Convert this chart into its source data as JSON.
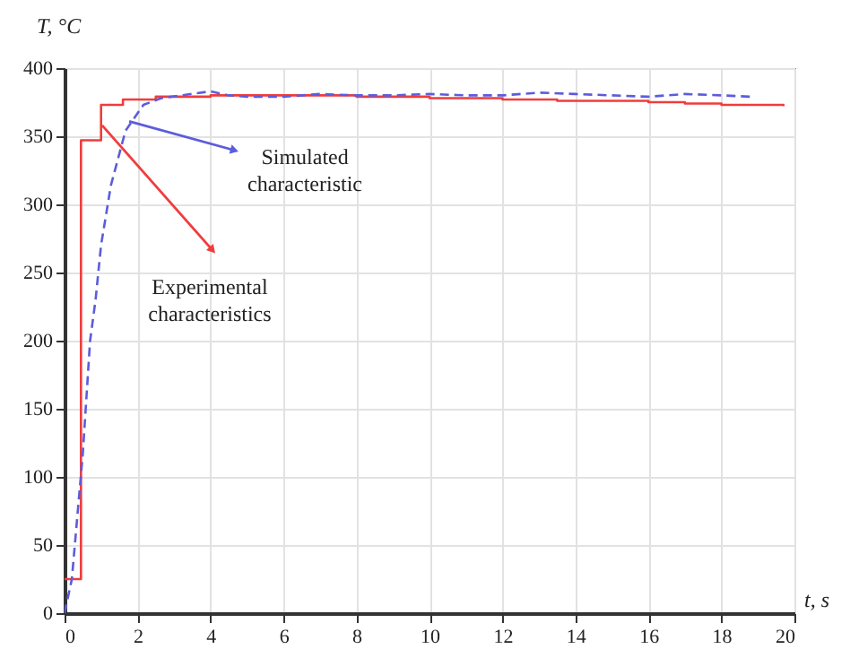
{
  "chart_data": {
    "type": "line",
    "xlabel": "t, s",
    "ylabel": "T, °C",
    "xlim": [
      0,
      20
    ],
    "xticks": [
      0,
      2,
      4,
      6,
      8,
      10,
      12,
      14,
      16,
      18,
      20
    ],
    "ylim": [
      0,
      400
    ],
    "yticks": [
      0,
      50,
      100,
      150,
      200,
      250,
      300,
      350,
      400
    ],
    "grid": true,
    "series": [
      {
        "type": "step",
        "color": "#f03c3c",
        "line_style": "solid",
        "x": [
          0,
          0.45,
          1.0,
          1.6,
          2.5,
          4,
          6,
          8,
          10,
          12,
          13.5,
          15,
          16,
          17,
          18,
          19.7
        ],
        "values": [
          25,
          347,
          373,
          377,
          379,
          380,
          380,
          379,
          378,
          377,
          376,
          376,
          375,
          374,
          373,
          372
        ]
      },
      {
        "type": "line",
        "color": "#5c5cdc",
        "line_style": "dashed",
        "x": [
          0,
          0.2,
          0.5,
          0.7,
          0.85,
          1.0,
          1.27,
          1.67,
          2.16,
          2.65,
          3.2,
          4,
          4.5,
          5,
          6,
          7,
          8,
          9,
          10,
          11,
          12,
          13,
          14,
          15,
          16,
          17,
          18,
          18.8
        ],
        "values": [
          0,
          25,
          117,
          200,
          230,
          270,
          314,
          354,
          373,
          378,
          380,
          383,
          380,
          379,
          379,
          381,
          380,
          380,
          381,
          380,
          380,
          382,
          381,
          380,
          379,
          381,
          380,
          379
        ]
      }
    ],
    "annotations": [
      {
        "text": "Experimental characteristics",
        "x": 1.03,
        "y": 358
      },
      {
        "text": "Simulated characteristic",
        "x": 1.77,
        "y": 361
      }
    ]
  }
}
